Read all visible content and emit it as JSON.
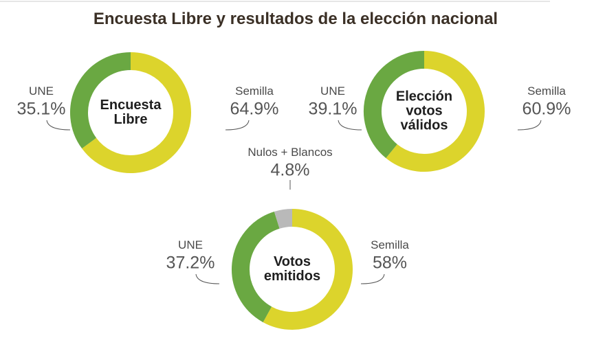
{
  "title": "Encuesta Libre y resultados de la elección nacional",
  "chart_data": [
    {
      "type": "donut",
      "center_label": "Encuesta Libre",
      "categories": [
        "Semilla",
        "UNE"
      ],
      "values": [
        64.9,
        35.1
      ],
      "value_labels": [
        "64.9%",
        "35.1%"
      ],
      "colors": [
        "#dcd42c",
        "#6aa842"
      ]
    },
    {
      "type": "donut",
      "center_label": "Elección votos válidos",
      "categories": [
        "Semilla",
        "UNE"
      ],
      "values": [
        60.9,
        39.1
      ],
      "value_labels": [
        "60.9%",
        "39.1%"
      ],
      "colors": [
        "#dcd42c",
        "#6aa842"
      ]
    },
    {
      "type": "donut",
      "center_label": "Votos emitidos",
      "categories": [
        "Semilla",
        "UNE",
        "Nulos + Blancos"
      ],
      "values": [
        58,
        37.2,
        4.8
      ],
      "value_labels": [
        "58%",
        "37.2%",
        "4.8%"
      ],
      "colors": [
        "#dcd42c",
        "#6aa842",
        "#b9b9b9"
      ]
    }
  ]
}
